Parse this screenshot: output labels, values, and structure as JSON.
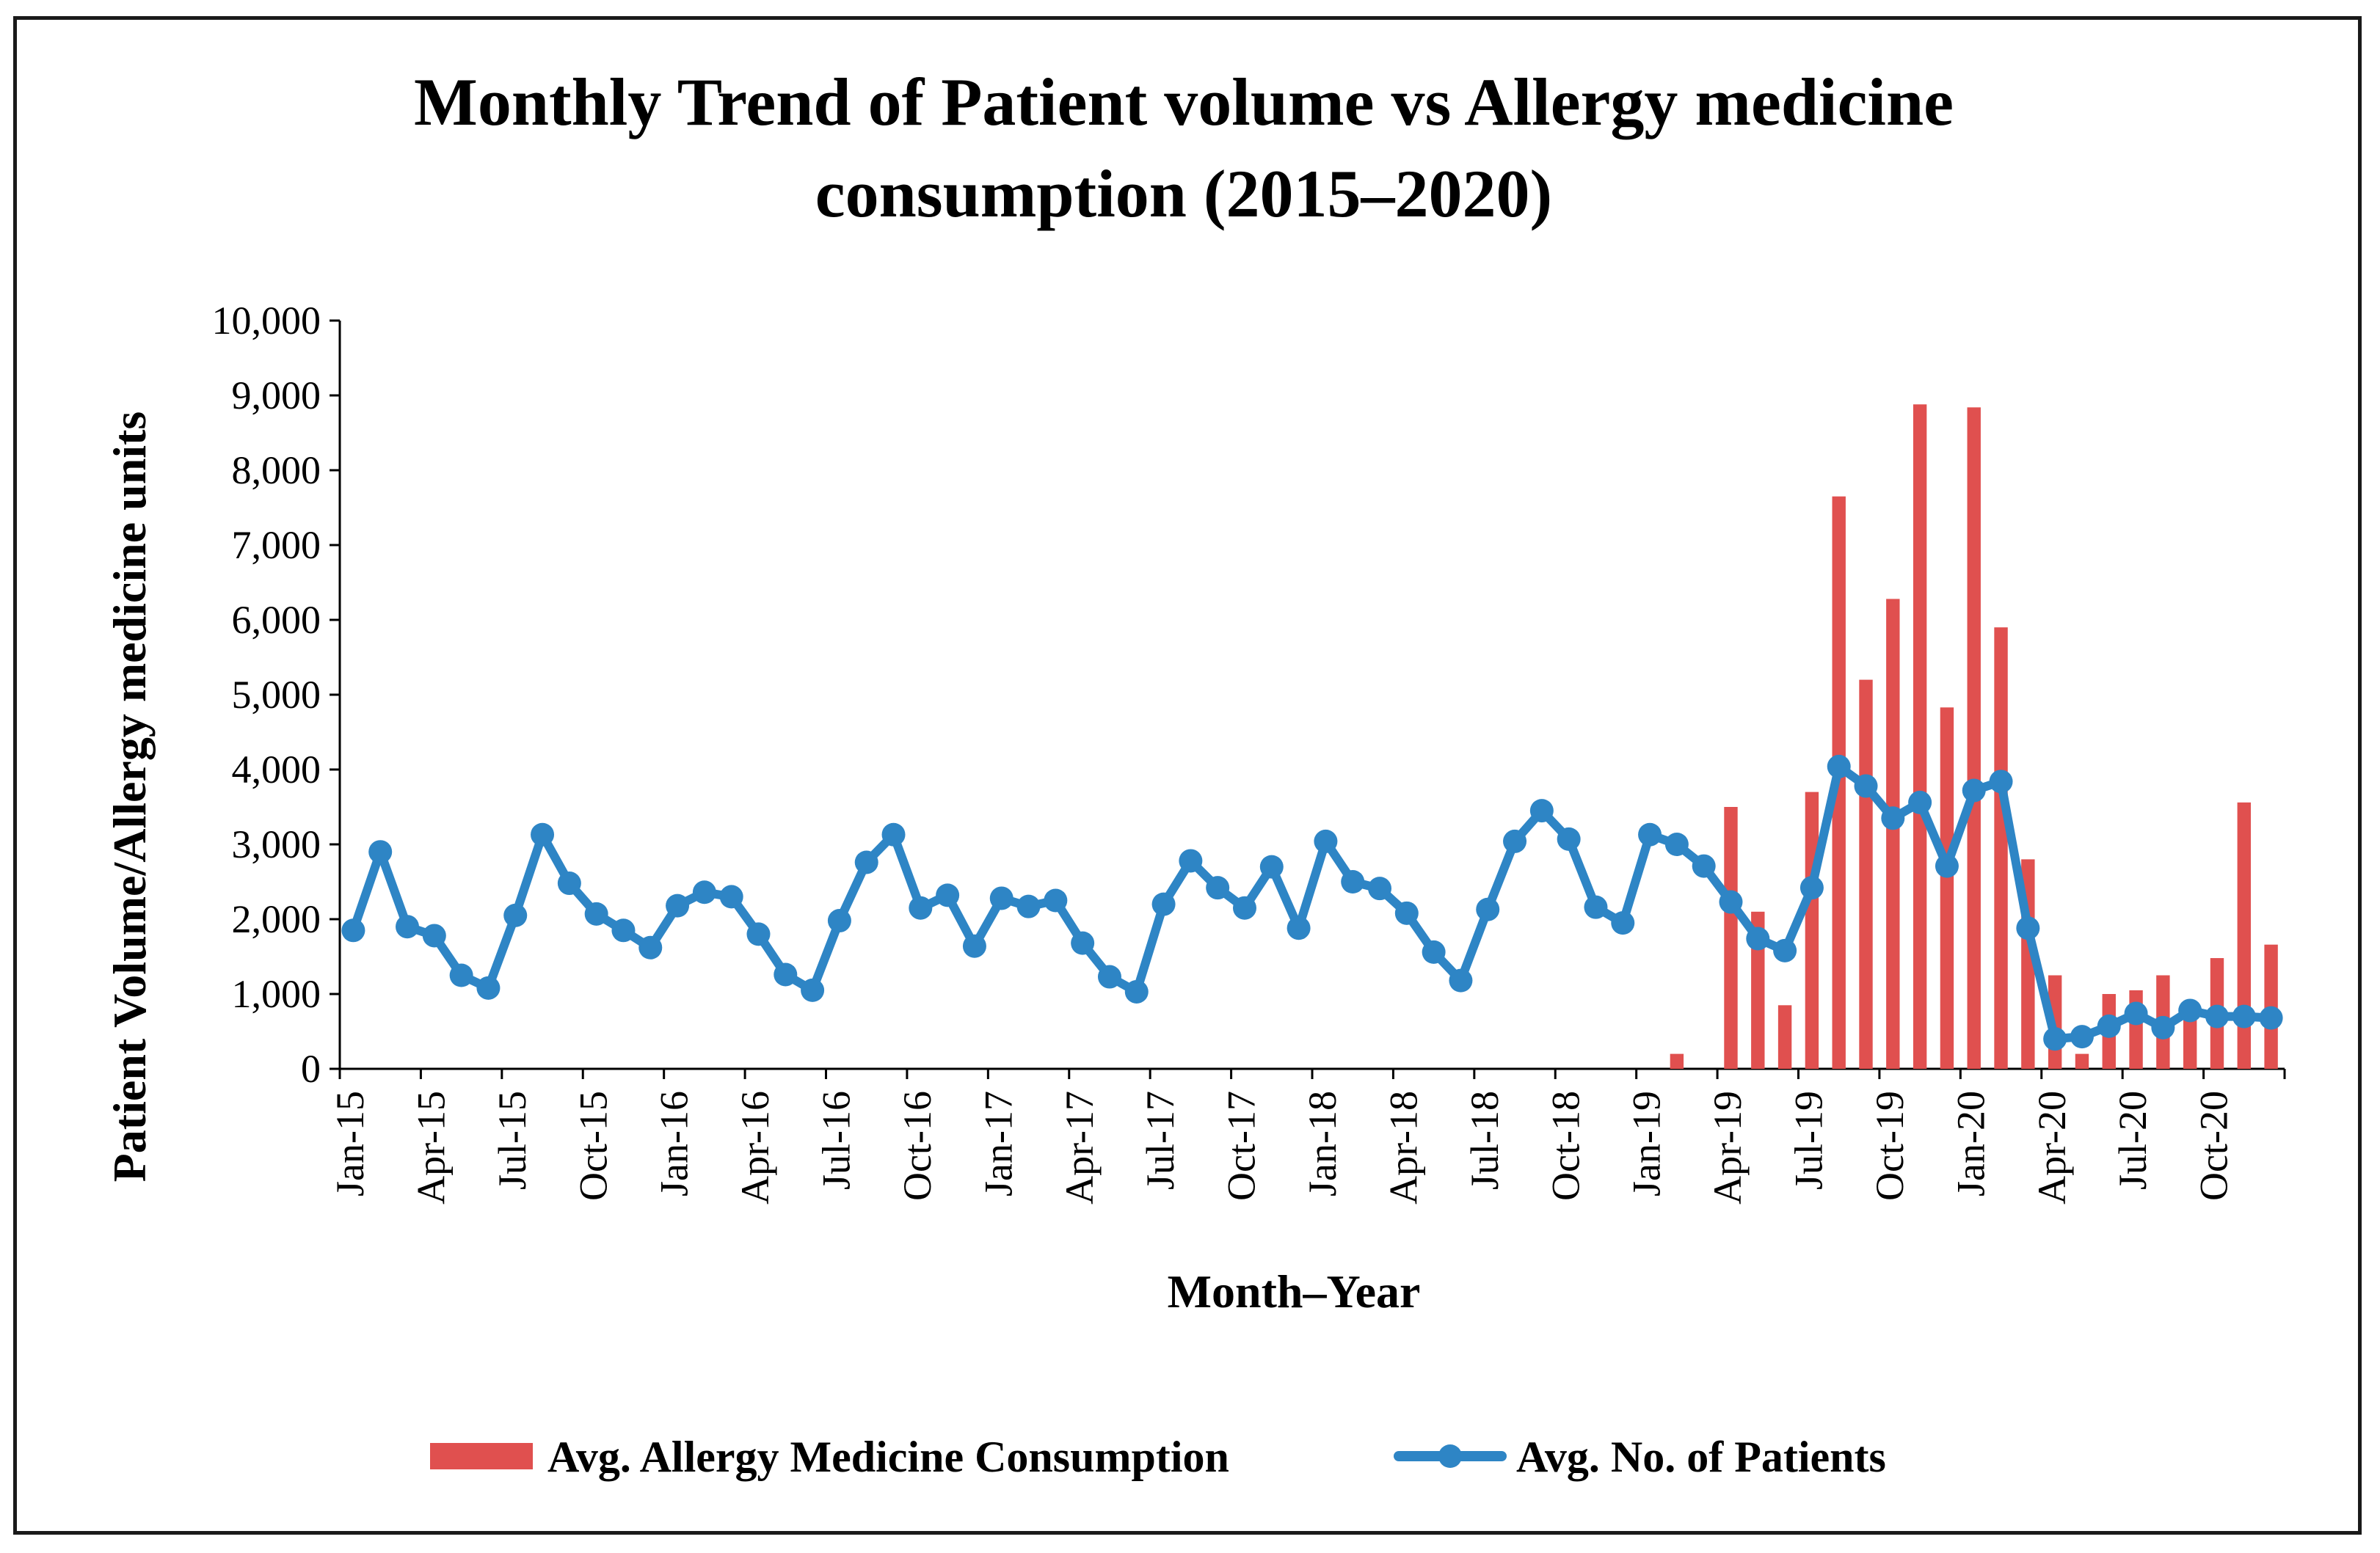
{
  "chart_data": {
    "type": "bar+line",
    "title_lines": [
      "Monthly Trend of Patient volume vs Allergy medicine",
      "consumption (2015–2020)"
    ],
    "xlabel": "Month–Year",
    "ylabel": "Patient  Volume/Allergy  medicine  units",
    "ylim": [
      0,
      10000
    ],
    "yticks": [
      0,
      1000,
      2000,
      3000,
      4000,
      5000,
      6000,
      7000,
      8000,
      9000,
      10000
    ],
    "ytick_labels": [
      "0",
      "1,000",
      "2,000",
      "3,000",
      "4,000",
      "5,000",
      "6,000",
      "7,000",
      "8,000",
      "9,000",
      "10,000"
    ],
    "categories": [
      "Jan-15",
      "Feb-15",
      "Mar-15",
      "Apr-15",
      "May-15",
      "Jun-15",
      "Jul-15",
      "Aug-15",
      "Sep-15",
      "Oct-15",
      "Nov-15",
      "Dec-15",
      "Jan-16",
      "Feb-16",
      "Mar-16",
      "Apr-16",
      "May-16",
      "Jun-16",
      "Jul-16",
      "Aug-16",
      "Sep-16",
      "Oct-16",
      "Nov-16",
      "Dec-16",
      "Jan-17",
      "Feb-17",
      "Mar-17",
      "Apr-17",
      "May-17",
      "Jun-17",
      "Jul-17",
      "Aug-17",
      "Sep-17",
      "Oct-17",
      "Nov-17",
      "Dec-17",
      "Jan-18",
      "Feb-18",
      "Mar-18",
      "Apr-18",
      "May-18",
      "Jun-18",
      "Jul-18",
      "Aug-18",
      "Sep-18",
      "Oct-18",
      "Nov-18",
      "Dec-18",
      "Jan-19",
      "Feb-19",
      "Mar-19",
      "Apr-19",
      "May-19",
      "Jun-19",
      "Jul-19",
      "Aug-19",
      "Sep-19",
      "Oct-19",
      "Nov-19",
      "Dec-19",
      "Jan-20",
      "Feb-20",
      "Mar-20",
      "Apr-20",
      "May-20",
      "Jun-20",
      "Jul-20",
      "Aug-20",
      "Sep-20",
      "Oct-20",
      "Nov-20",
      "Dec-20"
    ],
    "xtick_labels": [
      "Jan-15",
      "Apr-15",
      "Jul-15",
      "Oct-15",
      "Jan-16",
      "Apr-16",
      "Jul-16",
      "Oct-16",
      "Jan-17",
      "Apr-17",
      "Jul-17",
      "Oct-17",
      "Jan-18",
      "Apr-18",
      "Jul-18",
      "Oct-18",
      "Jan-19",
      "Apr-19",
      "Jul-19",
      "Oct-19",
      "Jan-20",
      "Apr-20",
      "Jul-20",
      "Oct-20"
    ],
    "series": [
      {
        "name": "Avg. Allergy Medicine Consumption",
        "kind": "bar",
        "color": "#E0504F",
        "values": [
          0,
          0,
          0,
          0,
          0,
          0,
          0,
          0,
          0,
          0,
          0,
          0,
          0,
          0,
          0,
          0,
          0,
          0,
          0,
          0,
          0,
          0,
          0,
          0,
          0,
          0,
          0,
          0,
          0,
          0,
          0,
          0,
          0,
          0,
          0,
          0,
          0,
          0,
          0,
          0,
          0,
          0,
          0,
          0,
          0,
          0,
          0,
          0,
          0,
          200,
          0,
          3500,
          2100,
          850,
          3700,
          7650,
          5200,
          6280,
          8880,
          4830,
          8840,
          5900,
          2800,
          1250,
          200,
          1000,
          1050,
          1250,
          900,
          1480,
          3560,
          1660
        ]
      },
      {
        "name": "Avg. No. of Patients",
        "kind": "line",
        "color": "#2E85C5",
        "values": [
          1850,
          2900,
          1900,
          1780,
          1250,
          1080,
          2050,
          3130,
          2480,
          2070,
          1850,
          1620,
          2180,
          2360,
          2300,
          1800,
          1260,
          1050,
          1980,
          2760,
          3130,
          2150,
          2320,
          1640,
          2280,
          2170,
          2250,
          1680,
          1230,
          1030,
          2200,
          2780,
          2420,
          2150,
          2700,
          1880,
          3040,
          2500,
          2410,
          2080,
          1560,
          1180,
          2130,
          3040,
          3450,
          3070,
          2160,
          1950,
          3130,
          3000,
          2710,
          2230,
          1740,
          1580,
          2420,
          4040,
          3780,
          3350,
          3560,
          2710,
          3720,
          3840,
          1880,
          400,
          430,
          570,
          740,
          550,
          780,
          700,
          700,
          680
        ]
      }
    ]
  }
}
